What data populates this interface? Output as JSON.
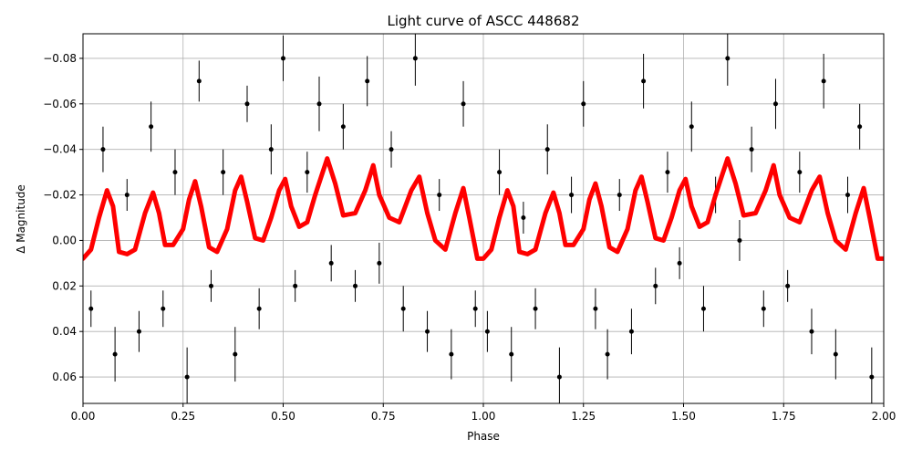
{
  "chart_data": {
    "type": "errorbar-line",
    "title": "Light curve of ASCC 448682",
    "x_label": "Phase",
    "y_label": "Δ Magnitude",
    "xlim": [
      0,
      2
    ],
    "ylim": [
      -0.0908,
      0.0716
    ],
    "y_inverted": true,
    "grid": true,
    "xticks": [
      {
        "value": 0,
        "label": "0.00"
      },
      {
        "value": 0.25,
        "label": "0.25"
      },
      {
        "value": 0.5,
        "label": "0.50"
      },
      {
        "value": 0.75,
        "label": "0.75"
      },
      {
        "value": 1,
        "label": "1.00"
      },
      {
        "value": 1.25,
        "label": "1.25"
      },
      {
        "value": 1.5,
        "label": "1.50"
      },
      {
        "value": 1.75,
        "label": "1.75"
      },
      {
        "value": 2,
        "label": "2.00"
      }
    ],
    "yticks": [
      {
        "value": -0.08,
        "label": "−0.08"
      },
      {
        "value": -0.06,
        "label": "−0.06"
      },
      {
        "value": -0.04,
        "label": "−0.04"
      },
      {
        "value": -0.02,
        "label": "−0.02"
      },
      {
        "value": 0,
        "label": "0.00"
      },
      {
        "value": 0.02,
        "label": "0.02"
      },
      {
        "value": 0.04,
        "label": "0.04"
      },
      {
        "value": 0.06,
        "label": "0.06"
      }
    ],
    "series": [
      {
        "color": "#000000",
        "x": [
          0.02,
          0.05,
          0.08,
          0.11,
          0.14,
          0.17,
          0.2,
          0.23,
          0.26,
          0.29,
          0.32,
          0.35,
          0.38,
          0.41,
          0.44,
          0.47,
          0.5,
          0.53,
          0.56,
          0.59,
          0.62,
          0.65,
          0.68,
          0.71,
          0.74,
          0.77,
          0.8,
          0.83,
          0.86,
          0.89,
          0.92,
          0.95,
          0.98,
          1.01,
          1.04,
          1.07,
          1.1,
          1.13,
          1.16,
          1.19,
          1.22,
          1.25,
          1.28,
          1.31,
          1.34,
          1.37,
          1.4,
          1.43,
          1.46,
          1.49,
          1.52,
          1.55,
          1.58,
          1.61,
          1.64,
          1.67,
          1.7,
          1.73,
          1.76,
          1.79,
          1.82,
          1.85,
          1.88,
          1.91,
          1.94,
          1.97
        ],
        "values": [
          0.03,
          -0.04,
          0.05,
          -0.02,
          0.04,
          -0.05,
          0.03,
          -0.03,
          0.06,
          -0.07,
          0.02,
          -0.03,
          0.05,
          -0.06,
          0.03,
          -0.04,
          -0.08,
          0.02,
          -0.03,
          -0.06,
          0.01,
          -0.05,
          0.02,
          -0.07,
          0.01,
          -0.04,
          0.03,
          -0.08,
          0.04,
          -0.02,
          0.05,
          -0.06,
          0.03,
          0.04,
          -0.03,
          0.05,
          -0.01,
          0.03,
          -0.04,
          0.06,
          -0.02,
          -0.06,
          0.03,
          0.05,
          -0.02,
          0.04,
          -0.07,
          0.02,
          -0.03,
          0.01,
          -0.05,
          0.03,
          -0.02,
          -0.08,
          0.0,
          -0.04,
          0.03,
          -0.06,
          0.02,
          -0.03,
          0.04,
          -0.07,
          0.05,
          -0.02,
          -0.05,
          0.06
        ],
        "errors": [
          0.008,
          0.01,
          0.012,
          0.007,
          0.009,
          0.011,
          0.008,
          0.01,
          0.013,
          0.009,
          0.007,
          0.01,
          0.012,
          0.008,
          0.009,
          0.011,
          0.01,
          0.007,
          0.009,
          0.012,
          0.008,
          0.01,
          0.007,
          0.011,
          0.009,
          0.008,
          0.01,
          0.012,
          0.009,
          0.007,
          0.011,
          0.01,
          0.008,
          0.009,
          0.01,
          0.012,
          0.007,
          0.009,
          0.011,
          0.013,
          0.008,
          0.01,
          0.009,
          0.011,
          0.007,
          0.01,
          0.012,
          0.008,
          0.009,
          0.007,
          0.011,
          0.01,
          0.008,
          0.012,
          0.009,
          0.01,
          0.008,
          0.011,
          0.007,
          0.009,
          0.01,
          0.012,
          0.011,
          0.008,
          0.01,
          0.013
        ]
      },
      {
        "color": "#ff0000",
        "x": [
          0,
          0.02,
          0.04,
          0.06,
          0.075,
          0.09,
          0.11,
          0.13,
          0.155,
          0.175,
          0.19,
          0.205,
          0.225,
          0.25,
          0.265,
          0.28,
          0.295,
          0.315,
          0.335,
          0.36,
          0.38,
          0.395,
          0.41,
          0.43,
          0.45,
          0.47,
          0.49,
          0.505,
          0.52,
          0.54,
          0.56,
          0.58,
          0.61,
          0.63,
          0.65,
          0.68,
          0.705,
          0.725,
          0.74,
          0.765,
          0.79,
          0.82,
          0.84,
          0.86,
          0.88,
          0.905,
          0.93,
          0.95,
          0.965,
          0.985,
          1.0,
          1.02,
          1.04,
          1.06,
          1.075,
          1.09,
          1.11,
          1.13,
          1.155,
          1.175,
          1.19,
          1.205,
          1.225,
          1.25,
          1.265,
          1.28,
          1.295,
          1.315,
          1.335,
          1.36,
          1.38,
          1.395,
          1.41,
          1.43,
          1.45,
          1.47,
          1.49,
          1.505,
          1.52,
          1.54,
          1.56,
          1.58,
          1.61,
          1.63,
          1.65,
          1.68,
          1.705,
          1.725,
          1.74,
          1.765,
          1.79,
          1.82,
          1.84,
          1.86,
          1.88,
          1.905,
          1.93,
          1.95,
          1.965,
          1.985,
          2.0
        ],
        "values": [
          0.008,
          0.004,
          -0.01,
          -0.022,
          -0.015,
          0.005,
          0.006,
          0.004,
          -0.012,
          -0.021,
          -0.012,
          0.002,
          0.002,
          -0.005,
          -0.018,
          -0.026,
          -0.015,
          0.003,
          0.005,
          -0.005,
          -0.022,
          -0.028,
          -0.017,
          -0.001,
          0.0,
          -0.01,
          -0.022,
          -0.027,
          -0.015,
          -0.006,
          -0.008,
          -0.02,
          -0.036,
          -0.025,
          -0.011,
          -0.012,
          -0.022,
          -0.033,
          -0.02,
          -0.01,
          -0.008,
          -0.022,
          -0.028,
          -0.012,
          0.0,
          0.004,
          -0.012,
          -0.023,
          -0.01,
          0.008,
          0.008,
          0.004,
          -0.01,
          -0.022,
          -0.015,
          0.005,
          0.006,
          0.004,
          -0.012,
          -0.021,
          -0.012,
          0.002,
          0.002,
          -0.005,
          -0.018,
          -0.025,
          -0.015,
          0.003,
          0.005,
          -0.005,
          -0.022,
          -0.028,
          -0.017,
          -0.001,
          0.0,
          -0.01,
          -0.022,
          -0.027,
          -0.015,
          -0.006,
          -0.008,
          -0.02,
          -0.036,
          -0.025,
          -0.011,
          -0.012,
          -0.022,
          -0.033,
          -0.02,
          -0.01,
          -0.008,
          -0.022,
          -0.028,
          -0.012,
          0.0,
          0.004,
          -0.012,
          -0.023,
          -0.01,
          0.008,
          0.008
        ]
      }
    ]
  }
}
